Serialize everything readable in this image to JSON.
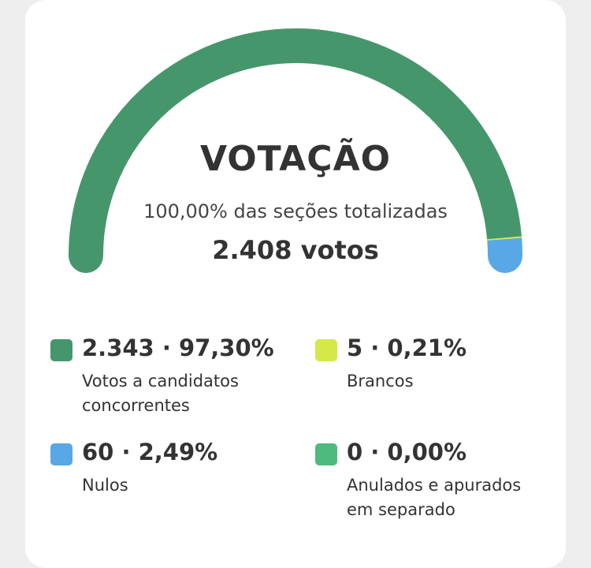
{
  "title": "VOTAÇÃO",
  "subtitle": "100,00% das seções totalizadas",
  "total": "2.408 votos",
  "colors": {
    "candidatos": "#46966b",
    "brancos": "#d5e84a",
    "nulos": "#58a7e6",
    "anulados": "#4fba7e"
  },
  "chart_data": {
    "type": "gauge",
    "series": [
      {
        "name": "Votos a candidatos concorrentes",
        "value": 2343,
        "percent": 97.3
      },
      {
        "name": "Brancos",
        "value": 5,
        "percent": 0.21
      },
      {
        "name": "Nulos",
        "value": 60,
        "percent": 2.49
      },
      {
        "name": "Anulados e apurados em separado",
        "value": 0,
        "percent": 0.0
      }
    ]
  },
  "legend": [
    {
      "value": "2.343 · 97,30%",
      "label": "Votos a candidatos concorrentes"
    },
    {
      "value": "5 · 0,21%",
      "label": "Brancos"
    },
    {
      "value": "60 · 2,49%",
      "label": "Nulos"
    },
    {
      "value": "0 · 0,00%",
      "label": "Anulados e apurados em separado"
    }
  ]
}
